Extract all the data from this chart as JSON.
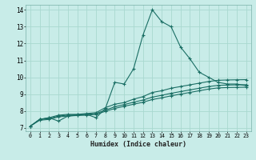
{
  "xlabel": "Humidex (Indice chaleur)",
  "background_color": "#c8ece8",
  "grid_color": "#a8d8d0",
  "line_color": "#1a6e64",
  "xlim": [
    -0.5,
    23.5
  ],
  "ylim": [
    6.8,
    14.3
  ],
  "xticks": [
    0,
    1,
    2,
    3,
    4,
    5,
    6,
    7,
    8,
    9,
    10,
    11,
    12,
    13,
    14,
    15,
    16,
    17,
    18,
    19,
    20,
    21,
    22,
    23
  ],
  "yticks": [
    7,
    8,
    9,
    10,
    11,
    12,
    13,
    14
  ],
  "series": [
    [
      7.1,
      7.5,
      7.6,
      7.4,
      7.7,
      7.75,
      7.8,
      7.6,
      8.15,
      9.7,
      9.6,
      10.5,
      12.5,
      14.0,
      13.3,
      13.0,
      11.8,
      11.1,
      10.3,
      10.0,
      9.7,
      9.6,
      9.6,
      9.5
    ],
    [
      7.1,
      7.5,
      7.6,
      7.75,
      7.8,
      7.8,
      7.85,
      7.9,
      8.2,
      8.4,
      8.5,
      8.7,
      8.85,
      9.1,
      9.2,
      9.35,
      9.45,
      9.55,
      9.65,
      9.75,
      9.82,
      9.84,
      9.85,
      9.86
    ],
    [
      7.1,
      7.5,
      7.55,
      7.7,
      7.75,
      7.78,
      7.8,
      7.85,
      8.05,
      8.25,
      8.38,
      8.52,
      8.65,
      8.82,
      8.93,
      9.05,
      9.15,
      9.25,
      9.35,
      9.45,
      9.52,
      9.54,
      9.55,
      9.56
    ],
    [
      7.1,
      7.45,
      7.5,
      7.65,
      7.7,
      7.73,
      7.75,
      7.8,
      7.98,
      8.15,
      8.28,
      8.4,
      8.52,
      8.68,
      8.78,
      8.9,
      9.0,
      9.1,
      9.2,
      9.3,
      9.37,
      9.39,
      9.4,
      9.41
    ]
  ]
}
